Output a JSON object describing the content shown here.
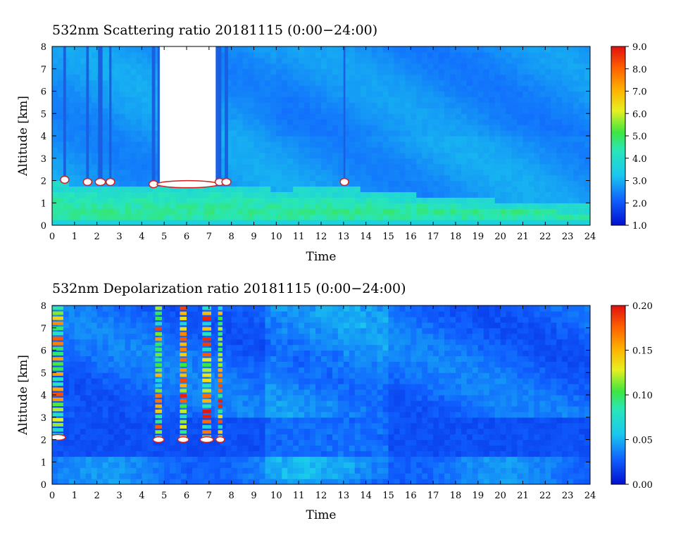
{
  "chart_data": [
    {
      "type": "heatmap",
      "title": "532nm Scattering ratio  20181115 (0:00−24:00)",
      "xlabel": "Time",
      "ylabel": "Altitude [km]",
      "xlim": [
        0,
        24
      ],
      "ylim": [
        0,
        8
      ],
      "x_ticks": [
        "0",
        "1",
        "2",
        "3",
        "4",
        "5",
        "6",
        "7",
        "8",
        "9",
        "10",
        "11",
        "12",
        "13",
        "14",
        "15",
        "16",
        "17",
        "18",
        "19",
        "20",
        "21",
        "22",
        "23",
        "24"
      ],
      "y_ticks": [
        "0",
        "1",
        "2",
        "3",
        "4",
        "5",
        "6",
        "7",
        "8"
      ],
      "colorbar": {
        "range": [
          1.0,
          9.0
        ],
        "ticks": [
          "1.0",
          "2.0",
          "3.0",
          "4.0",
          "5.0",
          "6.0",
          "7.0",
          "8.0",
          "9.0"
        ]
      },
      "background_value": 2.7,
      "boundary_layer": [
        {
          "t": 0,
          "top": 1.9
        },
        {
          "t": 3,
          "top": 1.8
        },
        {
          "t": 6,
          "top": 1.8
        },
        {
          "t": 8,
          "top": 1.8
        },
        {
          "t": 10,
          "top": 1.6
        },
        {
          "t": 13,
          "top": 1.7
        },
        {
          "t": 16,
          "top": 1.4
        },
        {
          "t": 20,
          "top": 1.1
        },
        {
          "t": 24,
          "top": 0.9
        }
      ],
      "cloud_columns": [
        {
          "t0": 0.5,
          "t1": 0.62,
          "bottom": 2.1
        },
        {
          "t0": 1.52,
          "t1": 1.64,
          "bottom": 2.0
        },
        {
          "t0": 2.05,
          "t1": 2.25,
          "bottom": 2.0
        },
        {
          "t0": 2.55,
          "t1": 2.65,
          "bottom": 2.0
        },
        {
          "t0": 4.45,
          "t1": 4.6,
          "bottom": 1.9
        },
        {
          "t0": 4.8,
          "t1": 7.3,
          "bottom": 1.9
        },
        {
          "t0": 7.4,
          "t1": 7.55,
          "bottom": 2.0
        },
        {
          "t0": 7.7,
          "t1": 7.85,
          "bottom": 2.0
        },
        {
          "t0": 13.0,
          "t1": 13.08,
          "bottom": 2.0
        }
      ]
    },
    {
      "type": "heatmap",
      "title": "532nm Depolarization ratio  20181115 (0:00−24:00)",
      "xlabel": "Time",
      "ylabel": "Altitude [km]",
      "xlim": [
        0,
        24
      ],
      "ylim": [
        0,
        8
      ],
      "x_ticks": [
        "0",
        "1",
        "2",
        "3",
        "4",
        "5",
        "6",
        "7",
        "8",
        "9",
        "10",
        "11",
        "12",
        "13",
        "14",
        "15",
        "16",
        "17",
        "18",
        "19",
        "20",
        "21",
        "22",
        "23",
        "24"
      ],
      "y_ticks": [
        "0",
        "1",
        "2",
        "3",
        "4",
        "5",
        "6",
        "7",
        "8"
      ],
      "colorbar": {
        "range": [
          0.0,
          0.2
        ],
        "ticks": [
          "0.00",
          "0.05",
          "0.10",
          "0.15",
          "0.20"
        ]
      },
      "background_value": 0.03,
      "cloud_columns": [
        {
          "t0": 0.0,
          "t1": 0.5,
          "bottom": 2.1
        },
        {
          "t0": 4.6,
          "t1": 4.9,
          "bottom": 2.0
        },
        {
          "t0": 5.7,
          "t1": 6.0,
          "bottom": 2.0
        },
        {
          "t0": 6.7,
          "t1": 7.1,
          "bottom": 2.0
        },
        {
          "t0": 7.4,
          "t1": 7.6,
          "bottom": 2.0
        }
      ]
    }
  ]
}
